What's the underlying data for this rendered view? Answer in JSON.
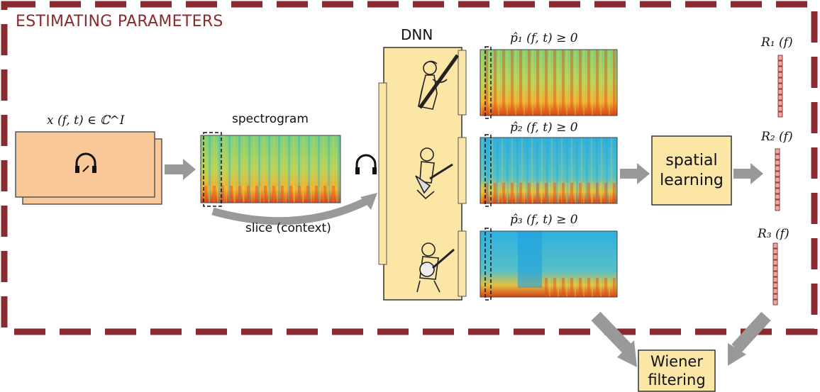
{
  "frame": {
    "title": "ESTIMATING PARAMETERS",
    "border_color": "#8b2a2e"
  },
  "input": {
    "label": "x (f, t) ∈ ℂ^I",
    "fill": "#f9c898"
  },
  "spectrogram": {
    "label": "spectrogram",
    "slice_label": "slice (context)"
  },
  "dnn": {
    "label": "DNN",
    "fill": "#fbe6a6"
  },
  "sources": [
    {
      "label": "p̂₁ (f, t) ≥ 0",
      "instrument_icon": "bassoon-player-icon"
    },
    {
      "label": "p̂₂ (f, t) ≥ 0",
      "instrument_icon": "balalaika-player-icon"
    },
    {
      "label": "p̂₃ (f, t) ≥ 0",
      "instrument_icon": "banjo-player-icon"
    }
  ],
  "spatial": {
    "label_line1": "spatial",
    "label_line2": "learning"
  },
  "covariances": [
    {
      "label": "R₁ (f)"
    },
    {
      "label": "R₂ (f)"
    },
    {
      "label": "R₃ (f)"
    }
  ],
  "wiener": {
    "label_line1": "Wiener",
    "label_line2": "filtering"
  },
  "colors": {
    "arrow": "#999999",
    "box_fill": "#fbe6a6",
    "vector_cell": "#f4a6a0"
  }
}
